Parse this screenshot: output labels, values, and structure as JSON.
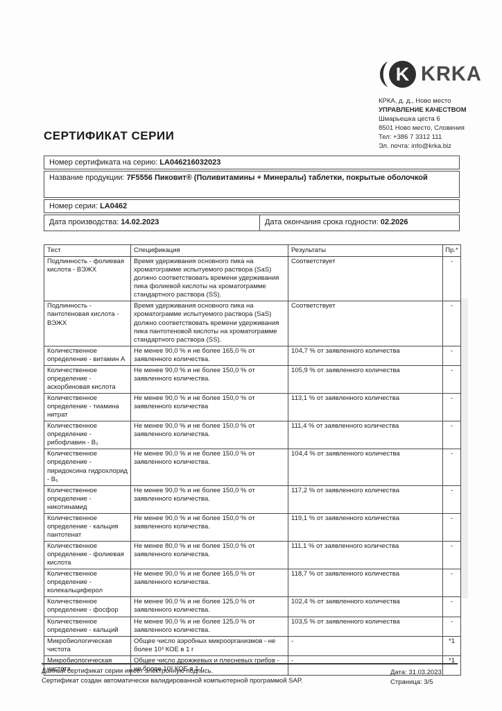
{
  "company": {
    "logo_text": "KRKA",
    "logo_symbol": "krka-circle-k-icon",
    "address_lines": [
      "КРКА, д. д., Ново место",
      "УПРАВЛЕНИЕ КАЧЕСТВОМ",
      "Шмарьешка цеста 6",
      "8501 Ново место, Словения",
      "Тел: +386 7 3312 111",
      "Эл. почта: info@krka.biz"
    ]
  },
  "page": {
    "title": "СЕРТИФИКАТ СЕРИИ",
    "footer_line1": "Данный сертификат серии имеет электронную подпись.",
    "footer_line2": "Сертификат создан автоматически валидированной компьютерной программой SAP.",
    "footer_date": "Дата: 31.03.2023",
    "footer_page": "Страница: 3/5"
  },
  "certificate": {
    "number_label": "Номер сертификата на серию: ",
    "number_value": "LA046216032023",
    "product_label": "Название продукции: ",
    "product_value": "7F5556 Пиковит® (Поливитамины + Минералы) таблетки, покрытые оболочкой",
    "batch_label": "Номер серии: ",
    "batch_value": "LA0462",
    "prod_date_label": "Дата производства: ",
    "prod_date_value": "14.02.2023",
    "exp_date_label": "Дата окончания срока годности: ",
    "exp_date_value": "02.2026"
  },
  "table": {
    "headers": [
      "Тест",
      "Спецификация",
      "Результаты",
      "Пр.*"
    ],
    "rows": [
      {
        "test": "Подлинность - фолиевая кислота - ВЭЖХ",
        "spec": "Время удерживания основного пика на хроматограмме испытуемого раствора (SaS) должно соответствовать времени удерживания пика фолиевой кислоты на хроматограмме стандартного раствора (SS).",
        "result": "Соответствует",
        "note": "-"
      },
      {
        "test": "Подлинность - пантотеновая кислота - ВЭЖХ",
        "spec": "Время удерживания основного пика на хроматограмме испытуемого раствора (SaS) должно соответствовать времени удерживания пика пантотеновой кислоты на хроматограмме стандартного раствора (SS).",
        "result": "Соответствует",
        "note": "-"
      },
      {
        "test": "Количественное определение - витамин А",
        "spec": "Не менее 90,0 % и не более 165,0 % от заявленного количества.",
        "result": "104,7 % от заявленного количества",
        "note": "-"
      },
      {
        "test": "Количественное определение - аскорбиновая кислота",
        "spec": "Не менее 90,0 % и не более 150,0 % от заявленного количества.",
        "result": "105,9 % от заявленного количества",
        "note": "-"
      },
      {
        "test": "Количественное определение - тиамина нитрат",
        "spec": "Не менее 90,0 % и не более 150,0 % от заявленного количества",
        "result": "113,1 % от заявленного количества",
        "note": "-"
      },
      {
        "test": "Количественное определение - рибофлавин - B₂",
        "spec": "Не менее 90,0 % и не более 150,0 % от заявленного количества.",
        "result": "111,4 % от заявленного количества",
        "note": "-"
      },
      {
        "test": "Количественное определение - пиридоксина гидрохлорид - B₆",
        "spec": "Не менее 90,0 % и не более 150,0 % от заявленного количества.",
        "result": "104,4 % от заявленного количества",
        "note": "-"
      },
      {
        "test": "Количественное определение - никотинамид",
        "spec": "Не менее 90,0 % и не более 150,0 % от заявленного количества.",
        "result": "117,2 % от заявленного количества",
        "note": "-"
      },
      {
        "test": "Количественное определение - кальция пантотенат",
        "spec": "Не менее 90,0 % и не более 150,0 % от заявленного количества.",
        "result": "119,1 % от заявленного количества",
        "note": "-"
      },
      {
        "test": "Количественное определение - фолиевая кислота",
        "spec": "Не менее 80,0 % и не более 150,0 % от заявленного количества.",
        "result": "111,1 % от заявленного количества",
        "note": "-"
      },
      {
        "test": "Количественное определение - колекальциферол",
        "spec": "Не менее 90,0 % и не более 165,0 % от заявленного количества.",
        "result": "118,7 % от заявленного количества",
        "note": "-"
      },
      {
        "test": "Количественное определение - фосфор",
        "spec": "Не менее 90,0 % и не более 125,0 % от заявленного количества.",
        "result": "102,4 % от заявленного количества",
        "note": "-"
      },
      {
        "test": "Количественное определение - кальций",
        "spec": "Не менее 90,0 % и не более 125,0 % от заявленного количества.",
        "result": "103,5 % от заявленного количества",
        "note": "-"
      },
      {
        "test": "Микробиологическая чистота",
        "spec": "Общее число аэробных микроорганизмов - не более 10³ КОЕ в 1 г",
        "result": "-",
        "note": "*1"
      },
      {
        "test": "Микробиологическая чистота",
        "spec": "Общее число дрожжевых и плесневых грибов - не более 10² КОЕ в 1 г",
        "result": "-",
        "note": "*1"
      }
    ]
  }
}
